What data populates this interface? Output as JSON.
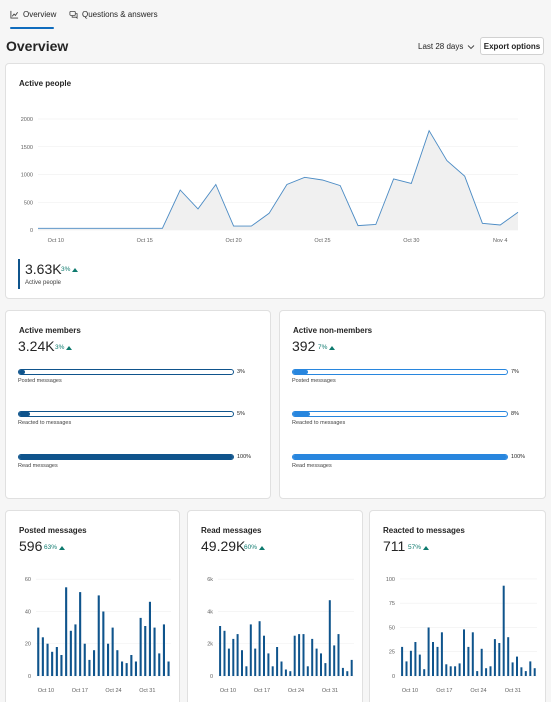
{
  "tabs": [
    {
      "label": "Overview",
      "icon": "chart-line-icon",
      "active": true
    },
    {
      "label": "Questions & answers",
      "icon": "chat-bubbles-icon",
      "active": false
    }
  ],
  "header": {
    "title": "Overview",
    "range_label": "Last 28 days",
    "export_label": "Export options"
  },
  "active_people": {
    "title": "Active people",
    "value": "3.63K",
    "delta": "3%",
    "caption": "Active people",
    "chart_data": {
      "type": "line",
      "x_ticks": [
        "Oct 10",
        "Oct 15",
        "Oct 20",
        "Oct 25",
        "Oct 30",
        "Nov 4"
      ],
      "y_ticks": [
        "0",
        "500",
        "1000",
        "1500",
        "2000"
      ],
      "ylim": [
        0,
        2000
      ],
      "x": [
        "Oct 9",
        "Oct 10",
        "Oct 11",
        "Oct 12",
        "Oct 13",
        "Oct 14",
        "Oct 15",
        "Oct 16",
        "Oct 17",
        "Oct 18",
        "Oct 19",
        "Oct 20",
        "Oct 21",
        "Oct 22",
        "Oct 23",
        "Oct 24",
        "Oct 25",
        "Oct 26",
        "Oct 27",
        "Oct 28",
        "Oct 29",
        "Oct 30",
        "Oct 31",
        "Nov 1",
        "Nov 2",
        "Nov 3",
        "Nov 4",
        "Nov 5"
      ],
      "values": [
        30,
        30,
        30,
        30,
        30,
        30,
        30,
        30,
        720,
        380,
        820,
        70,
        70,
        300,
        820,
        950,
        900,
        800,
        80,
        100,
        920,
        840,
        1790,
        1250,
        970,
        120,
        90,
        320
      ],
      "grid": true,
      "area_fill": "#f0f0f0",
      "line_color": "#4b8bc4"
    }
  },
  "members": {
    "title": "Active members",
    "value": "3.24K",
    "delta": "3%",
    "bars": [
      {
        "label": "Posted messages",
        "pct_text": "3%",
        "fraction": 0.03
      },
      {
        "label": "Reacted to messages",
        "pct_text": "5%",
        "fraction": 0.05
      },
      {
        "label": "Read messages",
        "pct_text": "100%",
        "fraction": 1.0
      }
    ]
  },
  "non_members": {
    "title": "Active non-members",
    "value": "392",
    "delta": "7%",
    "bars": [
      {
        "label": "Posted messages",
        "pct_text": "7%",
        "fraction": 0.07
      },
      {
        "label": "Reacted to messages",
        "pct_text": "8%",
        "fraction": 0.08
      },
      {
        "label": "Read messages",
        "pct_text": "100%",
        "fraction": 1.0
      }
    ]
  },
  "posted": {
    "title": "Posted messages",
    "value": "596",
    "delta": "63%",
    "chart_data": {
      "type": "bar",
      "y_ticks": [
        "0",
        "20",
        "40",
        "60"
      ],
      "ylim": [
        0,
        62
      ],
      "x_ticks": [
        "Oct 10",
        "Oct 17",
        "Oct 24",
        "Oct 31"
      ],
      "series": [
        {
          "values": [
            30,
            24,
            20,
            15,
            18,
            13,
            55,
            28,
            32,
            52,
            20,
            10,
            16,
            50,
            40,
            20,
            30,
            16,
            9,
            8,
            13,
            9,
            36,
            31,
            46,
            30,
            14,
            32,
            9
          ]
        }
      ]
    }
  },
  "read": {
    "title": "Read messages",
    "value": "49.29K",
    "delta": "60%",
    "chart_data": {
      "type": "bar",
      "y_ticks": [
        "0",
        "2k",
        "4k",
        "6k"
      ],
      "ylim": [
        0,
        6200
      ],
      "x_ticks": [
        "Oct 10",
        "Oct 17",
        "Oct 24",
        "Oct 31"
      ],
      "series": [
        {
          "values": [
            3100,
            2800,
            1700,
            2300,
            2600,
            1600,
            600,
            3200,
            1700,
            3400,
            2500,
            1400,
            600,
            1800,
            900,
            400,
            300,
            2500,
            2600,
            2600,
            600,
            2300,
            1700,
            1400,
            800,
            4700,
            1900,
            2600,
            500,
            300,
            1000
          ]
        }
      ]
    }
  },
  "reacted": {
    "title": "Reacted to messages",
    "value": "711",
    "delta": "57%",
    "chart_data": {
      "type": "bar",
      "y_ticks": [
        "0",
        "25",
        "50",
        "75",
        "100"
      ],
      "ylim": [
        0,
        103
      ],
      "x_ticks": [
        "Oct 10",
        "Oct 17",
        "Oct 24",
        "Oct 31"
      ],
      "series": [
        {
          "values": [
            30,
            15,
            26,
            35,
            22,
            7,
            50,
            35,
            30,
            45,
            12,
            10,
            10,
            13,
            48,
            30,
            45,
            5,
            28,
            8,
            10,
            38,
            34,
            93,
            40,
            14,
            20,
            9,
            5,
            15,
            8
          ]
        }
      ]
    }
  }
}
